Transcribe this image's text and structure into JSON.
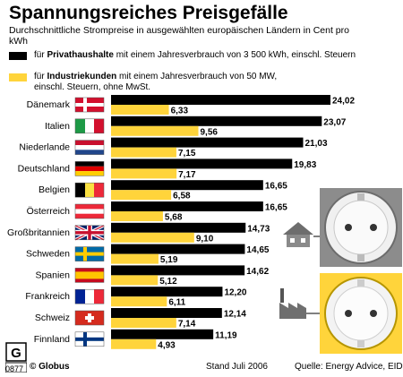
{
  "title": "Spannungsreiches Preisgefälle",
  "subtitle": "Durchschnittliche Strompreise in ausgewählten europäischen Ländern in Cent pro kWh",
  "legend": [
    {
      "prefix": "für ",
      "bold": "Privathaushalte",
      "rest": " mit einem Jahresverbrauch von 3 500 kWh, einschl. Steuern",
      "color": "#000000"
    },
    {
      "prefix": "für ",
      "bold": "Industriekunden",
      "rest": " mit einem Jahresverbrauch von 50 MW, einschl. Steuern, ohne MwSt.",
      "color": "#ffd43b"
    }
  ],
  "footer": {
    "logo_code": "0877",
    "brand": "© Globus",
    "date": "Stand Juli 2006",
    "source": "Quelle: Energy Advice, EID"
  },
  "colors": {
    "private": "#000000",
    "industry": "#ffd43b",
    "background": "#ffffff",
    "accent_bg": "#ffd43b"
  },
  "chart_data": {
    "type": "bar",
    "orientation": "horizontal",
    "categories": [
      "Dänemark",
      "Italien",
      "Niederlande",
      "Deutschland",
      "Belgien",
      "Österreich",
      "Großbritannien",
      "Schweden",
      "Spanien",
      "Frankreich",
      "Schweiz",
      "Finnland"
    ],
    "series": [
      {
        "name": "Privathaushalte",
        "values": [
          24.02,
          23.07,
          21.03,
          19.83,
          16.65,
          16.65,
          14.73,
          14.65,
          14.62,
          12.2,
          12.14,
          11.19
        ],
        "labels": [
          "24,02",
          "23,07",
          "21,03",
          "19,83",
          "16,65",
          "16,65",
          "14,73",
          "14,65",
          "14,62",
          "12,20",
          "12,14",
          "11,19"
        ]
      },
      {
        "name": "Industriekunden",
        "values": [
          6.33,
          9.56,
          7.15,
          7.17,
          6.58,
          5.68,
          9.1,
          5.19,
          5.12,
          6.11,
          7.14,
          4.93
        ],
        "labels": [
          "6,33",
          "9,56",
          "7,15",
          "7,17",
          "6,58",
          "5,68",
          "9,10",
          "5,19",
          "5,12",
          "6,11",
          "7,14",
          "4,93"
        ]
      }
    ],
    "flags": [
      "denmark-flag-icon",
      "italy-flag-icon",
      "netherlands-flag-icon",
      "germany-flag-icon",
      "belgium-flag-icon",
      "austria-flag-icon",
      "uk-flag-icon",
      "sweden-flag-icon",
      "spain-flag-icon",
      "france-flag-icon",
      "switzerland-flag-icon",
      "finland-flag-icon"
    ],
    "xlim": [
      0,
      24.02
    ],
    "grid": false,
    "legend_position": "top"
  }
}
